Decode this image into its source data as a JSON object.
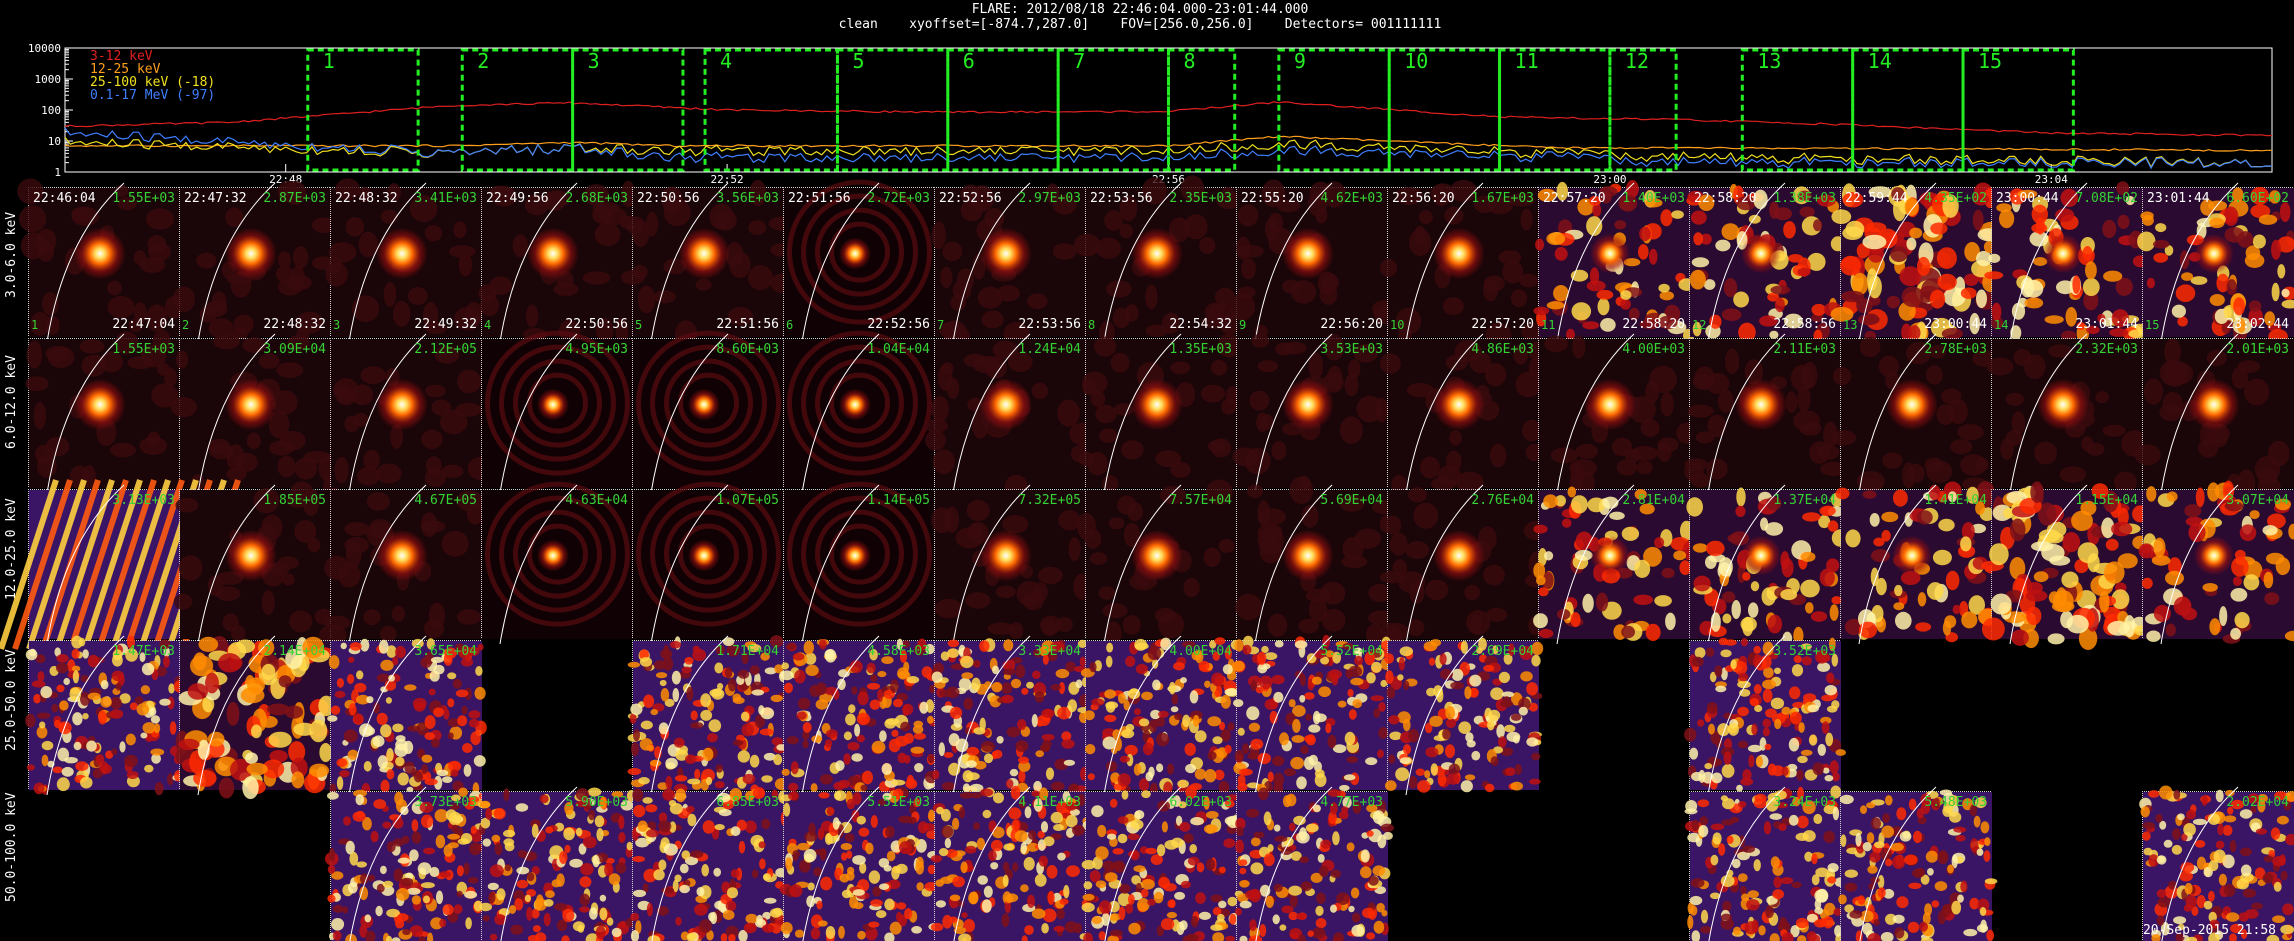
{
  "header": {
    "title": "FLARE: 2012/08/18 22:46:04.000-23:01:44.000",
    "subtitle": "clean    xyoffset=[-874.7,287.0]    FOV=[256.0,256.0]    Detectors= 001111111"
  },
  "stamp": "20-Sep-2015 21:58",
  "chart_data": [
    {
      "type": "line",
      "title": "",
      "y_scale": "log",
      "ylim": [
        1,
        10000
      ],
      "y_ticks": [
        "10000",
        "1000",
        "100",
        "10",
        "1"
      ],
      "x_tick_labels": [
        "22:48",
        "22:52",
        "22:56",
        "23:00",
        "23:04"
      ],
      "x_tick_minutes": [
        2,
        6,
        10,
        14,
        18
      ],
      "xlim_minutes": [
        0,
        20
      ],
      "grid": false,
      "legend_placement": "top-left",
      "series": [
        {
          "name": "3-12 keV",
          "color": "#e02020",
          "x": [
            0,
            1.5,
            3.5,
            4.6,
            6,
            8,
            10,
            11.0,
            13,
            13.5,
            14.5,
            16,
            18,
            20
          ],
          "y": [
            30,
            40,
            140,
            170,
            100,
            85,
            90,
            180,
            60,
            55,
            50,
            35,
            18,
            15
          ]
        },
        {
          "name": "12-25 keV",
          "color": "#ff9f1c",
          "x": [
            0,
            3.5,
            4.6,
            5.5,
            10,
            11.0,
            13.5,
            14.5,
            20
          ],
          "y": [
            7,
            7,
            9,
            7,
            7,
            14,
            6,
            6,
            5
          ]
        },
        {
          "name": "25-100 keV (-18)",
          "color": "#f0e020",
          "x": [
            0,
            3.5,
            4.6,
            5.5,
            10,
            11.0,
            13.5,
            14.5,
            20
          ],
          "y": [
            9,
            4,
            6,
            5,
            5,
            8,
            4,
            3,
            2
          ]
        },
        {
          "name": "0.1-17 MeV (-97)",
          "color": "#3f7fff",
          "x": [
            0,
            3.5,
            4.6,
            5.5,
            10,
            11.0,
            13.5,
            14.5,
            20
          ],
          "y": [
            18,
            4,
            6,
            3,
            3,
            5,
            3,
            2,
            2
          ]
        }
      ],
      "intervals": [
        {
          "label": "1",
          "start": 2.2,
          "end": 3.2
        },
        {
          "label": "2",
          "start": 3.6,
          "end": 4.6
        },
        {
          "label": "3",
          "start": 4.6,
          "end": 5.6
        },
        {
          "label": "4",
          "start": 5.8,
          "end": 7.0
        },
        {
          "label": "5",
          "start": 7.0,
          "end": 8.0
        },
        {
          "label": "6",
          "start": 8.0,
          "end": 9.0
        },
        {
          "label": "7",
          "start": 9.0,
          "end": 10.0
        },
        {
          "label": "8",
          "start": 10.0,
          "end": 10.6
        },
        {
          "label": "9",
          "start": 11.0,
          "end": 12.0
        },
        {
          "label": "10",
          "start": 12.0,
          "end": 13.0
        },
        {
          "label": "11",
          "start": 13.0,
          "end": 14.0
        },
        {
          "label": "12",
          "start": 14.0,
          "end": 14.6
        },
        {
          "label": "13",
          "start": 15.2,
          "end": 16.2
        },
        {
          "label": "14",
          "start": 16.2,
          "end": 17.2
        },
        {
          "label": "15",
          "start": 17.2,
          "end": 18.2
        }
      ]
    },
    {
      "type": "heatmap",
      "title": "",
      "energy_bands": [
        "3.0-6.0 keV",
        "6.0-12.0 keV",
        "12.0-25.0 keV",
        "25.0-50.0 keV",
        "50.0-100.0 keV"
      ],
      "time_starts": [
        "22:46:04",
        "22:47:32",
        "22:48:32",
        "22:49:56",
        "22:50:56",
        "22:51:56",
        "22:52:56",
        "22:53:56",
        "22:55:20",
        "22:56:20",
        "22:57:20",
        "22:58:20",
        "22:59:44",
        "23:00:44",
        "23:01:44"
      ],
      "time_ends": [
        "22:47:04",
        "22:48:32",
        "22:49:32",
        "22:50:56",
        "22:51:56",
        "22:52:56",
        "22:53:56",
        "22:54:32",
        "22:56:20",
        "22:57:20",
        "22:58:20",
        "22:58:56",
        "23:00:44",
        "23:01:44",
        "23:02:44"
      ],
      "interval_numbers": [
        "1",
        "2",
        "3",
        "4",
        "5",
        "6",
        "7",
        "8",
        "9",
        "10",
        "11",
        "12",
        "13",
        "14",
        "15"
      ],
      "rows": [
        {
          "band": "3.0-6.0 keV",
          "peaks": [
            "1.55E+03",
            "2.87E+03",
            "3.41E+03",
            "2.68E+03",
            "3.56E+03",
            "2.72E+03",
            "2.97E+03",
            "2.35E+03",
            "4.62E+03",
            "1.67E+03",
            "1.40E+03",
            "1.38E+03",
            "4.35E+02",
            "7.08E+02",
            "6.60E+02"
          ],
          "styles": [
            "fg",
            "fg",
            "fg",
            "fg",
            "fg",
            "rg",
            "fg",
            "fg",
            "fg",
            "fg",
            "ns",
            "ns",
            "nh",
            "ns",
            "ns"
          ]
        },
        {
          "band": "6.0-12.0 keV",
          "peaks": [
            "1.55E+03",
            "3.09E+04",
            "2.12E+05",
            "4.95E+03",
            "8.60E+03",
            "1.04E+04",
            "1.24E+04",
            "1.35E+03",
            "3.53E+03",
            "4.86E+03",
            "4.00E+03",
            "2.11E+03",
            "2.78E+03",
            "2.32E+03",
            "2.01E+03"
          ],
          "styles": [
            "fg",
            "fg",
            "fg",
            "rg",
            "rg",
            "rg",
            "fg",
            "fg",
            "fg",
            "fg",
            "fg",
            "fg",
            "fg",
            "fg",
            "fg"
          ]
        },
        {
          "band": "12.0-25.0 keV",
          "peaks": [
            "3.13E+03",
            "1.85E+05",
            "4.67E+05",
            "4.63E+04",
            "1.07E+05",
            "1.14E+05",
            "7.32E+05",
            "7.57E+04",
            "5.69E+04",
            "2.76E+04",
            "2.81E+04",
            "1.37E+04",
            "1.41E+04",
            "1.15E+04",
            "3.07E+04"
          ],
          "styles": [
            "st",
            "fg",
            "fg",
            "rg",
            "rg",
            "rg",
            "fg",
            "fg",
            "fg",
            "fg",
            "ns",
            "ns",
            "ns",
            "nh",
            "ns"
          ]
        },
        {
          "band": "25.0-50.0 keV",
          "peaks": [
            "1.47E+03",
            "2.14E+04",
            "3.65E+04",
            "",
            "1.71E+04",
            "4.58E+03",
            "3.33E+04",
            "4.00E+04",
            "5.52E+04",
            "2.69E+04",
            "",
            "3.52E+03",
            "",
            "",
            ""
          ],
          "styles": [
            "nz",
            "nh",
            "nz",
            "",
            "nz",
            "nz",
            "nz",
            "nz",
            "nz",
            "nz",
            "",
            "nz",
            "",
            "",
            ""
          ]
        },
        {
          "band": "50.0-100.0 keV",
          "peaks": [
            "",
            "",
            "3.73E+03",
            "5.90E+03",
            "6.85E+03",
            "5.51E+03",
            "4.11E+03",
            "6.02E+03",
            "4.77E+03",
            "",
            "",
            "3.24E+03",
            "5.48E+03",
            "",
            "2.02E+04"
          ],
          "styles": [
            "",
            "",
            "nz",
            "nz",
            "nz",
            "nz",
            "nz",
            "nz",
            "nz",
            "",
            "",
            "nz",
            "nz",
            "",
            "nz"
          ]
        }
      ]
    }
  ]
}
